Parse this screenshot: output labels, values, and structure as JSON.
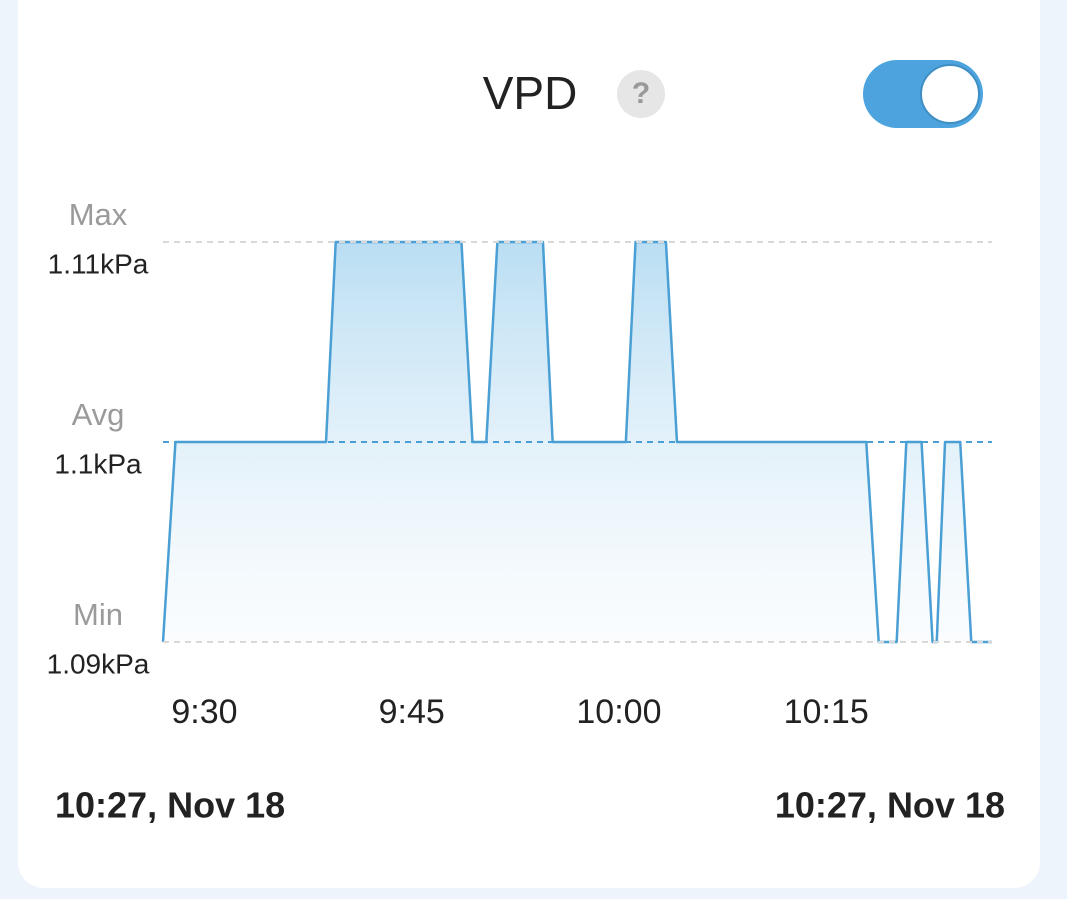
{
  "header": {
    "title": "VPD",
    "help": "?"
  },
  "chart_data": {
    "type": "line",
    "x": [
      567,
      567.9,
      578.8,
      579.5,
      588.6,
      589.4,
      590.4,
      591.2,
      594.5,
      595.2,
      600.5,
      601.2,
      603.4,
      604.2,
      617.9,
      618.8,
      620.1,
      620.8,
      621.9,
      622.7,
      623.0,
      623.6,
      624.7,
      625.5,
      627
    ],
    "series": [
      {
        "color": "#4a9fd4",
        "values": [
          1.09,
          1.1,
          1.1,
          1.11,
          1.11,
          1.1,
          1.1,
          1.11,
          1.11,
          1.1,
          1.1,
          1.11,
          1.11,
          1.1,
          1.1,
          1.09,
          1.09,
          1.1,
          1.1,
          1.09,
          1.09,
          1.1,
          1.1,
          1.09,
          1.09
        ]
      }
    ],
    "xlim": [
      567,
      627
    ],
    "xticks": [
      {
        "value": 570,
        "label": "9:30"
      },
      {
        "value": 585,
        "label": "9:45"
      },
      {
        "value": 600,
        "label": "10:00"
      },
      {
        "value": 615,
        "label": "10:15"
      }
    ],
    "ylim": [
      1.09,
      1.11
    ],
    "yticks": [
      {
        "value": 1.11,
        "label": "1.11kPa"
      },
      {
        "value": 1.1,
        "label": "1.1kPa"
      },
      {
        "value": 1.09,
        "label": "1.09kPa"
      }
    ],
    "ytick_titles": [
      "Max",
      "Avg",
      "Min"
    ],
    "grid": true
  },
  "footer": {
    "start": "10:27, Nov 18",
    "end": "10:27, Nov 18"
  }
}
